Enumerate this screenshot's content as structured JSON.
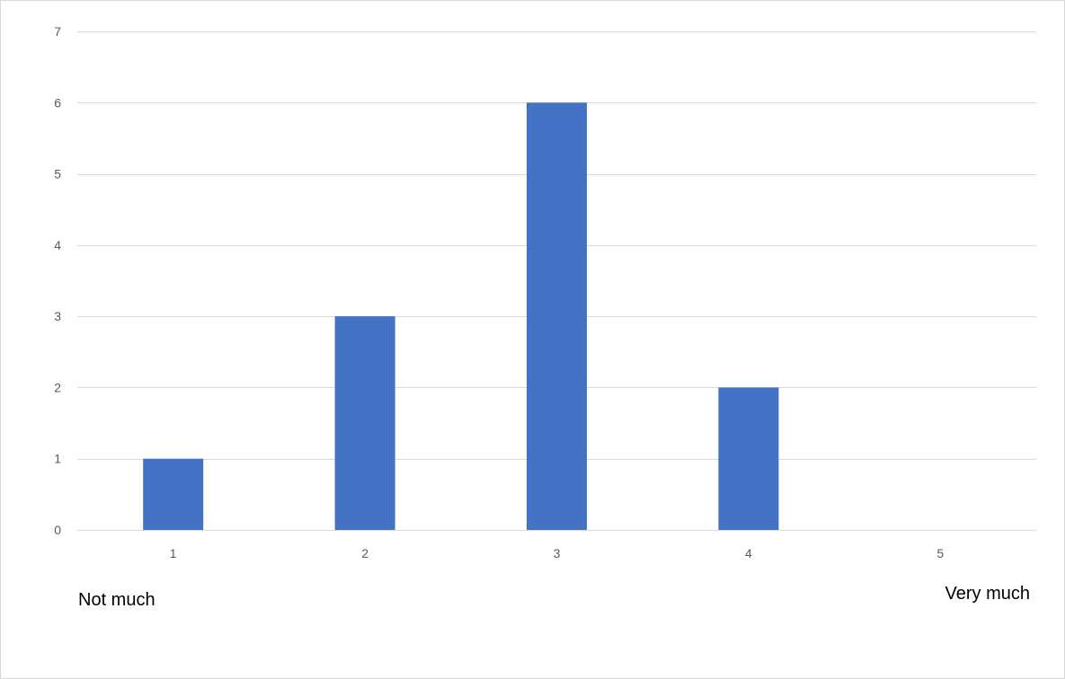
{
  "chart_data": {
    "type": "bar",
    "categories": [
      "1",
      "2",
      "3",
      "4",
      "5"
    ],
    "values": [
      1,
      3,
      6,
      2,
      0
    ],
    "ylim": [
      0,
      7
    ],
    "yticks": [
      0,
      1,
      2,
      3,
      4,
      5,
      6,
      7
    ],
    "grid": true,
    "legend": "none",
    "bar_color": "#4472C4",
    "grid_color": "#d9d9d9"
  },
  "scale_labels": {
    "low": "Not much",
    "high": "Very much"
  }
}
